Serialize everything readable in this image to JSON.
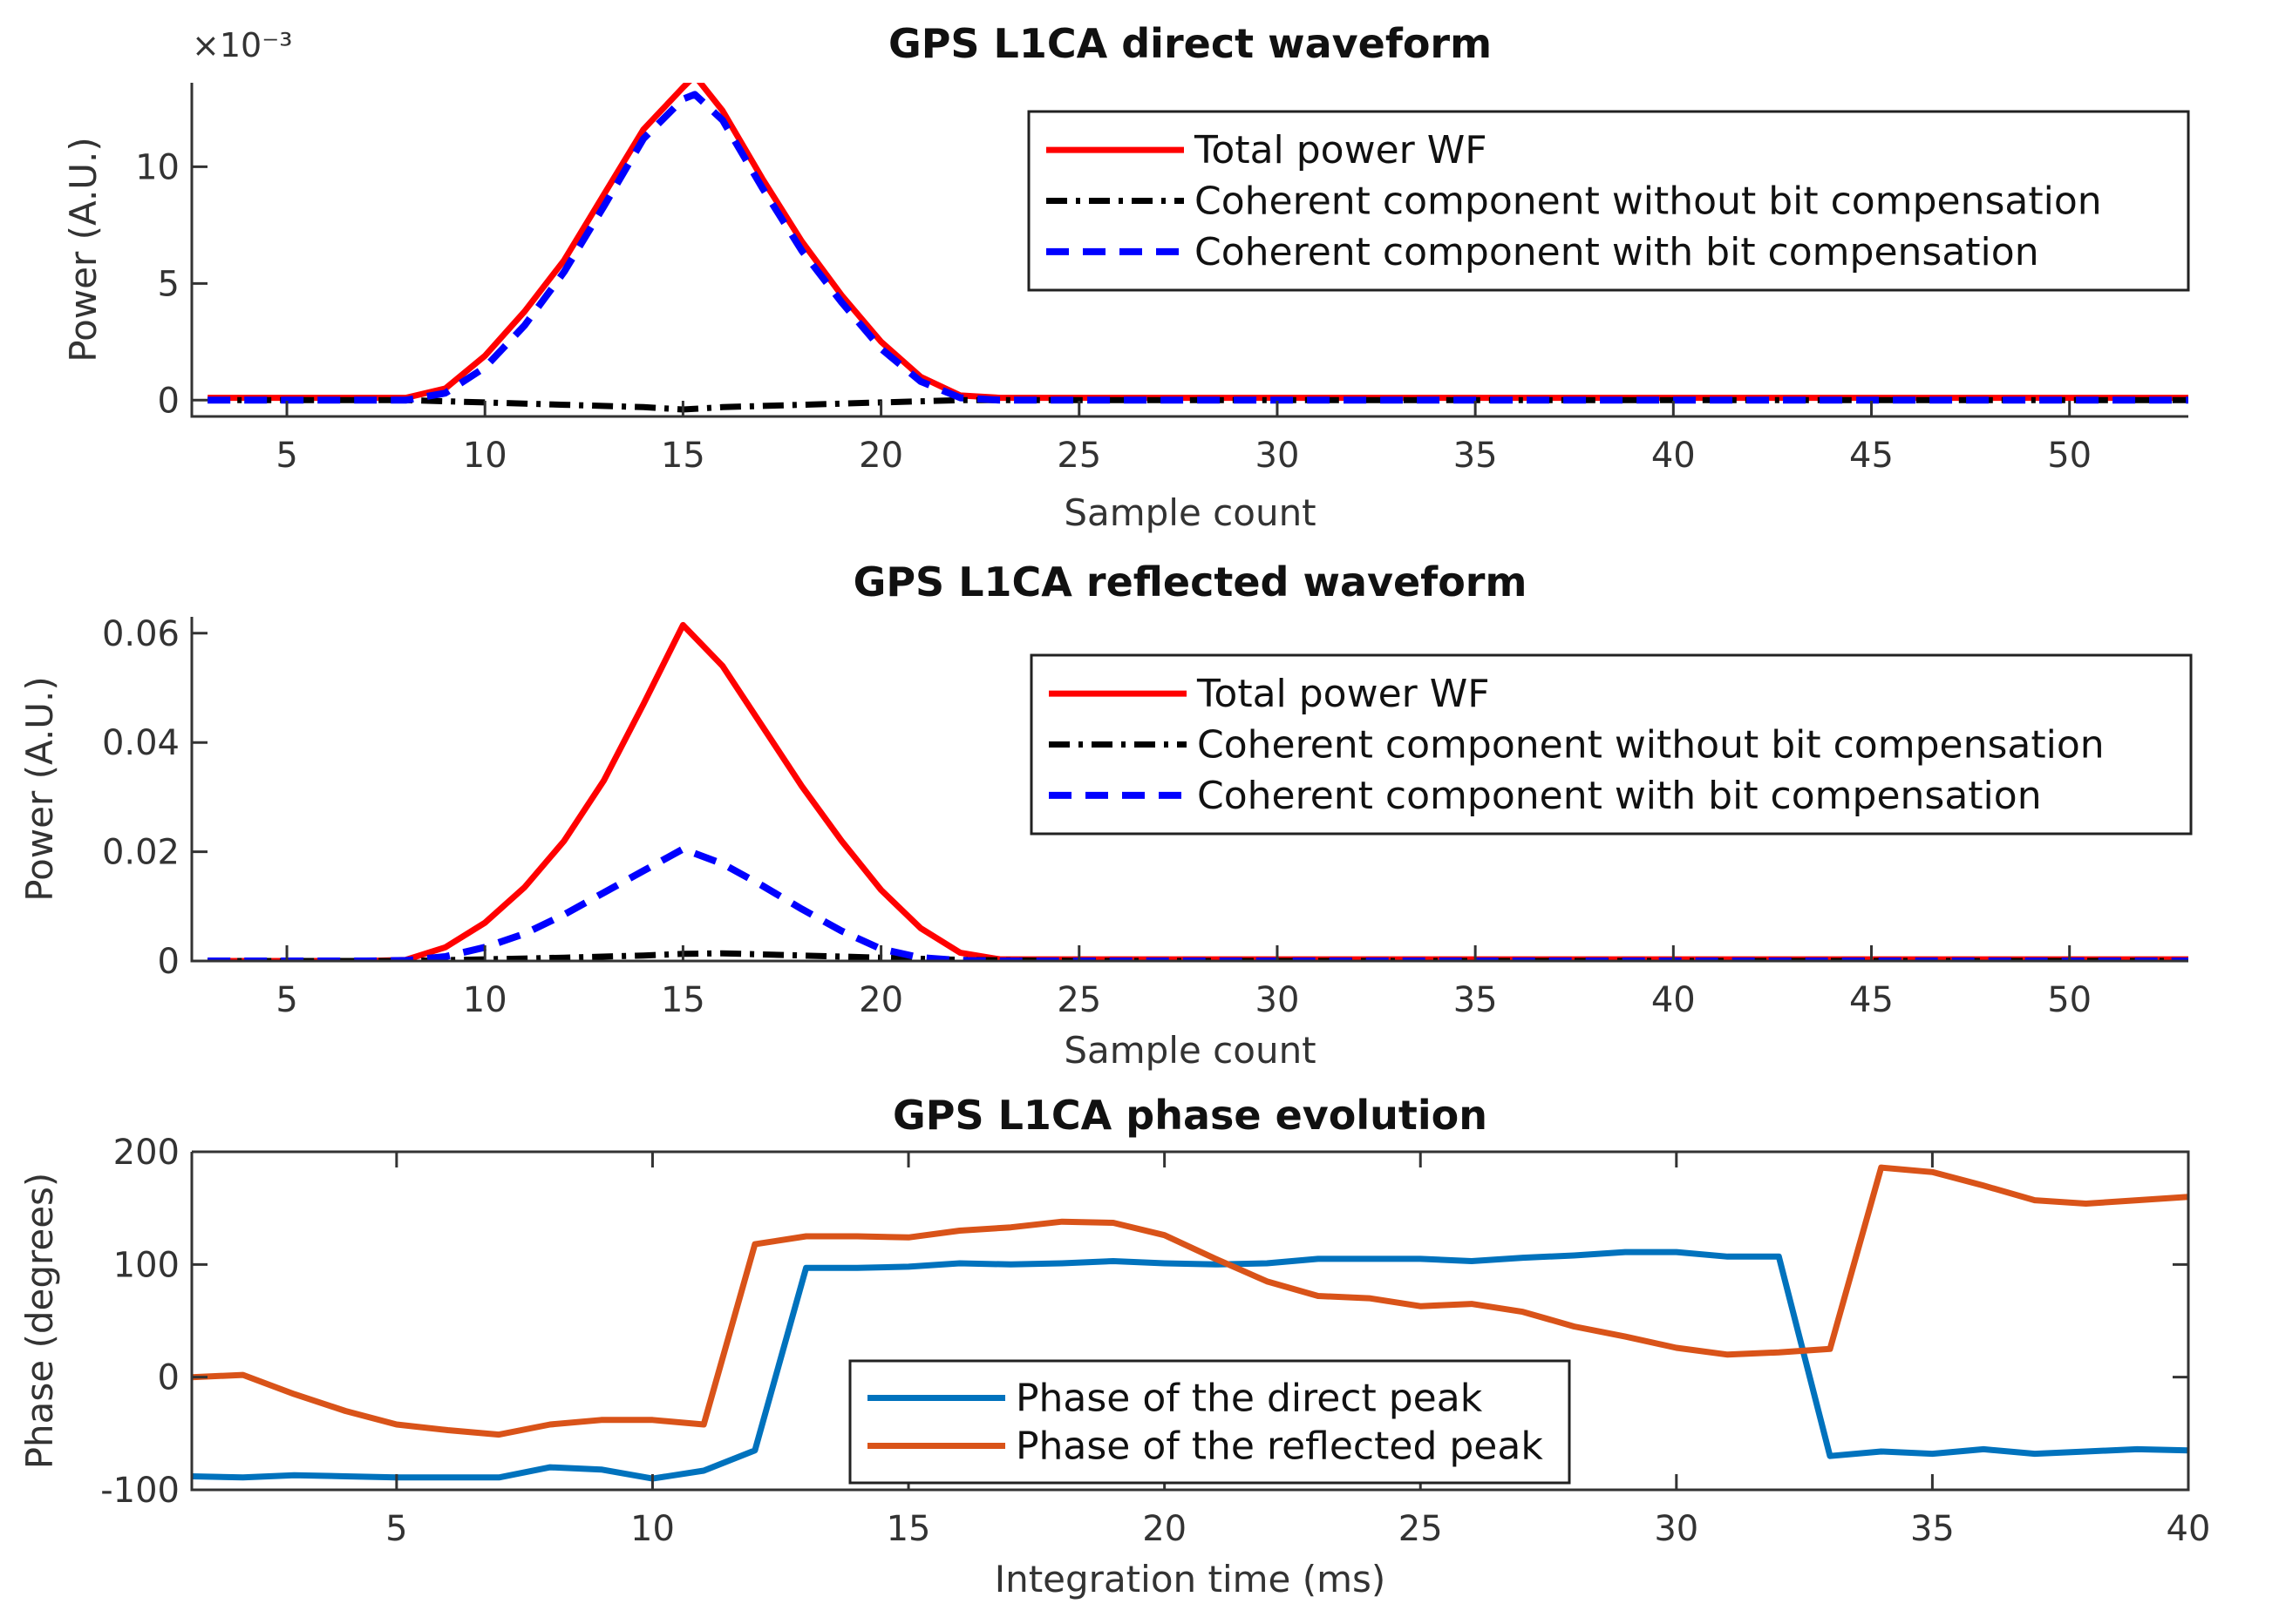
{
  "chart_data": [
    {
      "type": "line",
      "title": "GPS L1CA direct waveform",
      "xlabel": "Sample count",
      "ylabel": "Power (A.U.)",
      "exponent_label": "×10⁻³",
      "xlim": [
        2.6,
        53
      ],
      "ylim": [
        -0.0007,
        0.0136
      ],
      "xticks": [
        5,
        10,
        15,
        20,
        25,
        30,
        35,
        40,
        45,
        50
      ],
      "xtick_labels": [
        "5",
        "10",
        "15",
        "20",
        "25",
        "30",
        "35",
        "40",
        "45",
        "50"
      ],
      "yticks": [
        0,
        0.005,
        0.01
      ],
      "ytick_labels": [
        "0",
        "5",
        "10"
      ],
      "legend_position": "top-right",
      "series": [
        {
          "name": "Total power WF",
          "color": "#ff0000",
          "style": "solid",
          "x": [
            3,
            5,
            7,
            8,
            9,
            10,
            11,
            12,
            13,
            14,
            15,
            15.3,
            16,
            17,
            18,
            19,
            20,
            21,
            22,
            23,
            25,
            30,
            35,
            40,
            45,
            50,
            53
          ],
          "y": [
            0.0001,
            0.0001,
            0.0001,
            0.0001,
            0.0005,
            0.0019,
            0.0038,
            0.006,
            0.0088,
            0.0116,
            0.0134,
            0.0139,
            0.0124,
            0.0095,
            0.0068,
            0.0045,
            0.0025,
            0.001,
            0.0002,
            0.0001,
            0.0001,
            0.0001,
            0.0001,
            0.0001,
            0.0001,
            0.0001,
            0.0001
          ]
        },
        {
          "name": "Coherent component without bit compensation",
          "color": "#000000",
          "style": "dashdot",
          "x": [
            3,
            8,
            10,
            12,
            14,
            15,
            16,
            18,
            20,
            22,
            25,
            30,
            35,
            40,
            45,
            50,
            53
          ],
          "y": [
            0,
            0,
            -0.0001,
            -0.0002,
            -0.0003,
            -0.0004,
            -0.0003,
            -0.0002,
            -0.0001,
            0,
            0,
            0,
            0,
            0,
            0,
            0,
            0
          ]
        },
        {
          "name": "Coherent component with bit compensation",
          "color": "#0000ff",
          "style": "dashed",
          "x": [
            3,
            5,
            7,
            8,
            9,
            10,
            11,
            12,
            13,
            14,
            15,
            15.3,
            16,
            17,
            18,
            19,
            20,
            21,
            22,
            23,
            25,
            30,
            35,
            40,
            45,
            50,
            53
          ],
          "y": [
            0,
            0,
            0,
            0,
            0.0003,
            0.0014,
            0.0032,
            0.0055,
            0.0083,
            0.0112,
            0.0129,
            0.0131,
            0.012,
            0.0091,
            0.0064,
            0.0042,
            0.0022,
            0.0008,
            0.0001,
            0,
            0,
            0,
            0,
            0,
            0,
            0,
            0
          ]
        }
      ]
    },
    {
      "type": "line",
      "title": "GPS L1CA reflected waveform",
      "xlabel": "Sample count",
      "ylabel": "Power (A.U.)",
      "xlim": [
        2.6,
        53
      ],
      "ylim": [
        0,
        0.063
      ],
      "xticks": [
        5,
        10,
        15,
        20,
        25,
        30,
        35,
        40,
        45,
        50
      ],
      "xtick_labels": [
        "5",
        "10",
        "15",
        "20",
        "25",
        "30",
        "35",
        "40",
        "45",
        "50"
      ],
      "yticks": [
        0,
        0.02,
        0.04,
        0.06
      ],
      "ytick_labels": [
        "0",
        "0.02",
        "0.04",
        "0.06"
      ],
      "legend_position": "top-right",
      "series": [
        {
          "name": "Total power WF",
          "color": "#ff0000",
          "style": "solid",
          "x": [
            3,
            5,
            7,
            8,
            9,
            10,
            11,
            12,
            13,
            14,
            15,
            16,
            17,
            18,
            19,
            20,
            21,
            22,
            23,
            25,
            30,
            35,
            40,
            45,
            50,
            53
          ],
          "y": [
            0,
            0,
            0,
            0.0002,
            0.0025,
            0.007,
            0.0135,
            0.022,
            0.033,
            0.047,
            0.0615,
            0.054,
            0.043,
            0.032,
            0.022,
            0.013,
            0.006,
            0.0015,
            0.0003,
            0.0003,
            0.0003,
            0.0003,
            0.0003,
            0.0003,
            0.0003,
            0.0003
          ]
        },
        {
          "name": "Coherent component without bit compensation",
          "color": "#000000",
          "style": "dashdot",
          "x": [
            3,
            8,
            10,
            12,
            14,
            15,
            16,
            18,
            20,
            22,
            25,
            30,
            35,
            40,
            45,
            50,
            53
          ],
          "y": [
            0,
            0,
            0.0003,
            0.0006,
            0.001,
            0.0013,
            0.0014,
            0.001,
            0.0006,
            0.0002,
            0,
            0,
            0,
            0,
            0,
            0,
            0
          ]
        },
        {
          "name": "Coherent component with bit compensation",
          "color": "#0000ff",
          "style": "dashed",
          "x": [
            3,
            5,
            7,
            8,
            9,
            10,
            11,
            12,
            13,
            14,
            15,
            16,
            17,
            18,
            19,
            20,
            21,
            22,
            23,
            25,
            30,
            35,
            40,
            45,
            50,
            53
          ],
          "y": [
            0,
            0,
            0,
            0.0001,
            0.0008,
            0.0025,
            0.005,
            0.0085,
            0.0125,
            0.0165,
            0.0205,
            0.0178,
            0.0138,
            0.0095,
            0.0055,
            0.0022,
            0.0006,
            0.0001,
            0,
            0,
            0,
            0,
            0,
            0,
            0,
            0
          ]
        }
      ]
    },
    {
      "type": "line",
      "title": "GPS L1CA phase evolution",
      "xlabel": "Integration time (ms)",
      "ylabel": "Phase (degrees)",
      "xlim": [
        1,
        40
      ],
      "ylim": [
        -100,
        200
      ],
      "xticks": [
        5,
        10,
        15,
        20,
        25,
        30,
        35,
        40
      ],
      "xtick_labels": [
        "5",
        "10",
        "15",
        "20",
        "25",
        "30",
        "35",
        "40"
      ],
      "yticks": [
        -100,
        0,
        100,
        200
      ],
      "ytick_labels": [
        "-100",
        "0",
        "100",
        "200"
      ],
      "legend_position": "bottom-center",
      "series": [
        {
          "name": "Phase of the direct peak",
          "color": "#0072bd",
          "style": "solid",
          "x": [
            1,
            2,
            3,
            4,
            5,
            6,
            7,
            8,
            9,
            10,
            11,
            12,
            13,
            14,
            15,
            16,
            17,
            18,
            19,
            20,
            21,
            22,
            23,
            24,
            25,
            26,
            27,
            28,
            29,
            30,
            31,
            32,
            33,
            34,
            35,
            36,
            37,
            38,
            39,
            40
          ],
          "y": [
            -88,
            -89,
            -87,
            -88,
            -89,
            -89,
            -89,
            -80,
            -82,
            -90,
            -83,
            -65,
            97,
            97,
            98,
            101,
            100,
            101,
            103,
            101,
            100,
            101,
            105,
            105,
            105,
            103,
            106,
            108,
            111,
            111,
            107,
            107,
            -70,
            -66,
            -68,
            -64,
            -68,
            -66,
            -64,
            -65
          ]
        },
        {
          "name": "Phase of the reflected peak",
          "color": "#d95319",
          "style": "solid",
          "x": [
            1,
            2,
            3,
            4,
            5,
            6,
            7,
            8,
            9,
            10,
            11,
            12,
            13,
            14,
            15,
            16,
            17,
            18,
            19,
            20,
            21,
            22,
            23,
            24,
            25,
            26,
            27,
            28,
            29,
            30,
            31,
            32,
            33,
            34,
            35,
            36,
            37,
            38,
            39,
            40
          ],
          "y": [
            0,
            2,
            -15,
            -30,
            -42,
            -47,
            -51,
            -42,
            -38,
            -38,
            -42,
            118,
            125,
            125,
            124,
            130,
            133,
            138,
            137,
            126,
            105,
            85,
            72,
            70,
            63,
            65,
            58,
            45,
            36,
            26,
            20,
            22,
            25,
            186,
            182,
            170,
            157,
            154,
            157,
            160
          ]
        }
      ]
    }
  ]
}
